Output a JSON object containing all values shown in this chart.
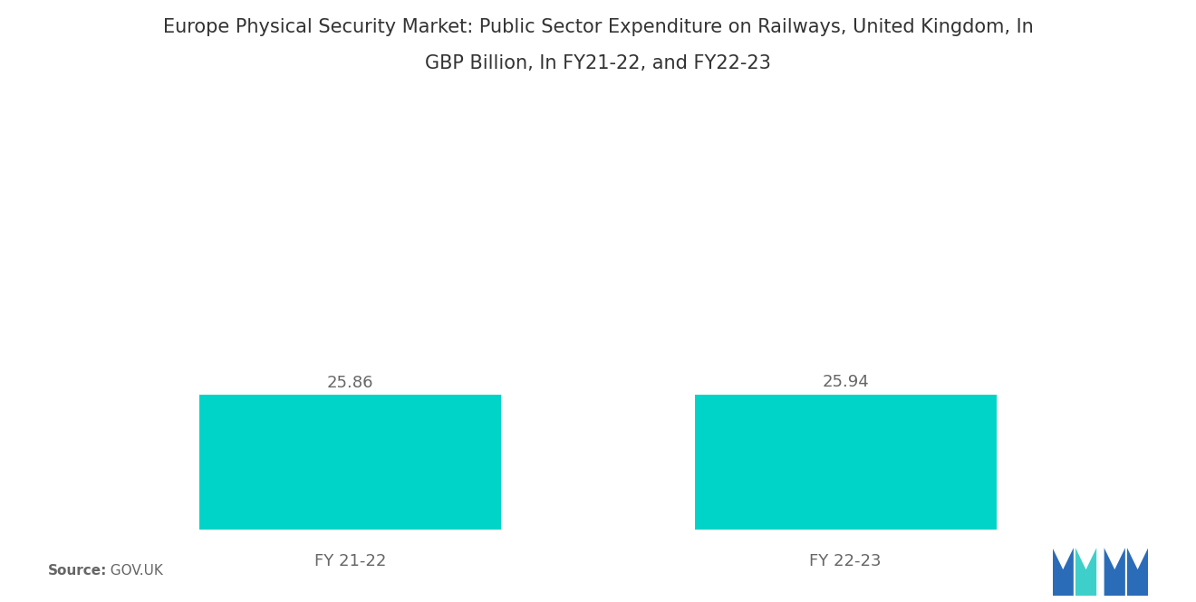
{
  "title_line1": "Europe Physical Security Market: Public Sector Expenditure on Railways, United Kingdom, In",
  "title_line2": "GBP Billion, In FY21-22, and FY22-23",
  "categories": [
    "FY 21-22",
    "FY 22-23"
  ],
  "values": [
    25.86,
    25.94
  ],
  "bar_color": "#00D4C8",
  "bar_width": 0.28,
  "label_fontsize": 13,
  "title_fontsize": 15,
  "value_fontsize": 13,
  "source_label": "Source:",
  "source_value": "  GOV.UK",
  "background_color": "#ffffff",
  "text_color": "#666666",
  "title_color": "#333333",
  "ylim": [
    0,
    60
  ],
  "xlim": [
    0,
    1
  ],
  "x_positions": [
    0.27,
    0.73
  ],
  "figsize": [
    13.2,
    6.65
  ]
}
